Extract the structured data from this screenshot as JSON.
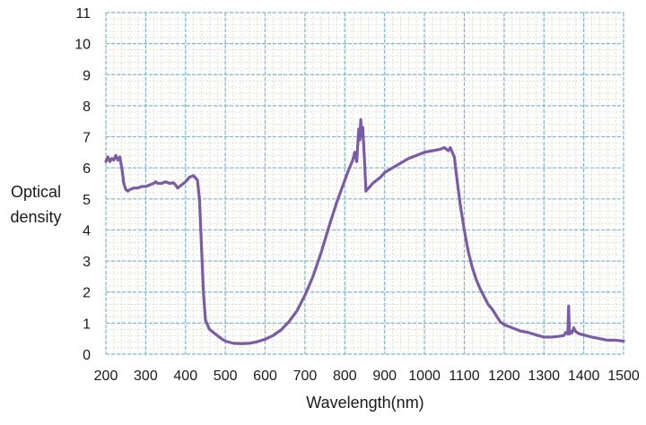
{
  "chart_data": {
    "type": "line",
    "title": "",
    "xlabel": "Wavelength(nm)",
    "ylabel_lines": [
      "Optical",
      "density"
    ],
    "xlim": [
      200,
      1500
    ],
    "ylim": [
      0,
      11
    ],
    "x_ticks": [
      200,
      300,
      400,
      500,
      600,
      700,
      800,
      900,
      1000,
      1100,
      1200,
      1300,
      1400,
      1500
    ],
    "y_ticks": [
      0,
      1,
      2,
      3,
      4,
      5,
      6,
      7,
      8,
      9,
      10,
      11
    ],
    "major_grid": true,
    "minor_grid": true,
    "legend": "none",
    "colors": {
      "line": "#7b5aa6",
      "major_grid": "#7bb8d8",
      "minor_grid": "#d6dcc4",
      "axis_text": "#1a1a1a"
    },
    "series": [
      {
        "x": [
          200,
          205,
          210,
          215,
          220,
          225,
          230,
          235,
          240,
          245,
          250,
          255,
          260,
          270,
          280,
          290,
          300,
          310,
          320,
          325,
          330,
          340,
          350,
          360,
          370,
          375,
          380,
          390,
          400,
          410,
          420,
          430,
          435,
          440,
          445,
          450,
          460,
          470,
          480,
          490,
          500,
          520,
          540,
          560,
          580,
          600,
          620,
          640,
          660,
          680,
          700,
          720,
          740,
          760,
          780,
          800,
          810,
          820,
          825,
          830,
          835,
          838,
          840,
          843,
          845,
          848,
          850,
          853,
          856,
          860,
          870,
          880,
          890,
          900,
          920,
          940,
          960,
          980,
          1000,
          1020,
          1040,
          1050,
          1060,
          1065,
          1070,
          1075,
          1080,
          1090,
          1100,
          1110,
          1120,
          1130,
          1140,
          1150,
          1160,
          1170,
          1180,
          1190,
          1200,
          1220,
          1240,
          1260,
          1280,
          1300,
          1320,
          1340,
          1350,
          1355,
          1360,
          1362,
          1364,
          1366,
          1370,
          1375,
          1380,
          1390,
          1400,
          1420,
          1440,
          1460,
          1480,
          1500
        ],
        "y": [
          6.2,
          6.35,
          6.2,
          6.3,
          6.25,
          6.4,
          6.25,
          6.35,
          6.0,
          5.5,
          5.3,
          5.25,
          5.3,
          5.35,
          5.35,
          5.4,
          5.4,
          5.45,
          5.5,
          5.55,
          5.5,
          5.5,
          5.55,
          5.5,
          5.52,
          5.45,
          5.35,
          5.45,
          5.55,
          5.7,
          5.75,
          5.6,
          5.0,
          3.5,
          2.0,
          1.1,
          0.8,
          0.7,
          0.6,
          0.5,
          0.42,
          0.35,
          0.34,
          0.35,
          0.4,
          0.48,
          0.6,
          0.78,
          1.05,
          1.4,
          1.9,
          2.5,
          3.25,
          4.1,
          4.9,
          5.6,
          5.95,
          6.25,
          6.5,
          6.2,
          7.25,
          6.9,
          7.55,
          7.0,
          7.3,
          6.6,
          6.1,
          5.25,
          5.3,
          5.35,
          5.5,
          5.6,
          5.7,
          5.85,
          6.0,
          6.15,
          6.3,
          6.4,
          6.5,
          6.55,
          6.6,
          6.65,
          6.55,
          6.65,
          6.5,
          6.35,
          5.8,
          4.8,
          4.0,
          3.3,
          2.8,
          2.4,
          2.1,
          1.85,
          1.6,
          1.45,
          1.25,
          1.05,
          0.95,
          0.85,
          0.75,
          0.7,
          0.62,
          0.55,
          0.55,
          0.58,
          0.6,
          0.7,
          0.65,
          1.55,
          0.65,
          0.75,
          0.68,
          0.85,
          0.72,
          0.65,
          0.62,
          0.55,
          0.5,
          0.45,
          0.45,
          0.42
        ]
      }
    ]
  }
}
